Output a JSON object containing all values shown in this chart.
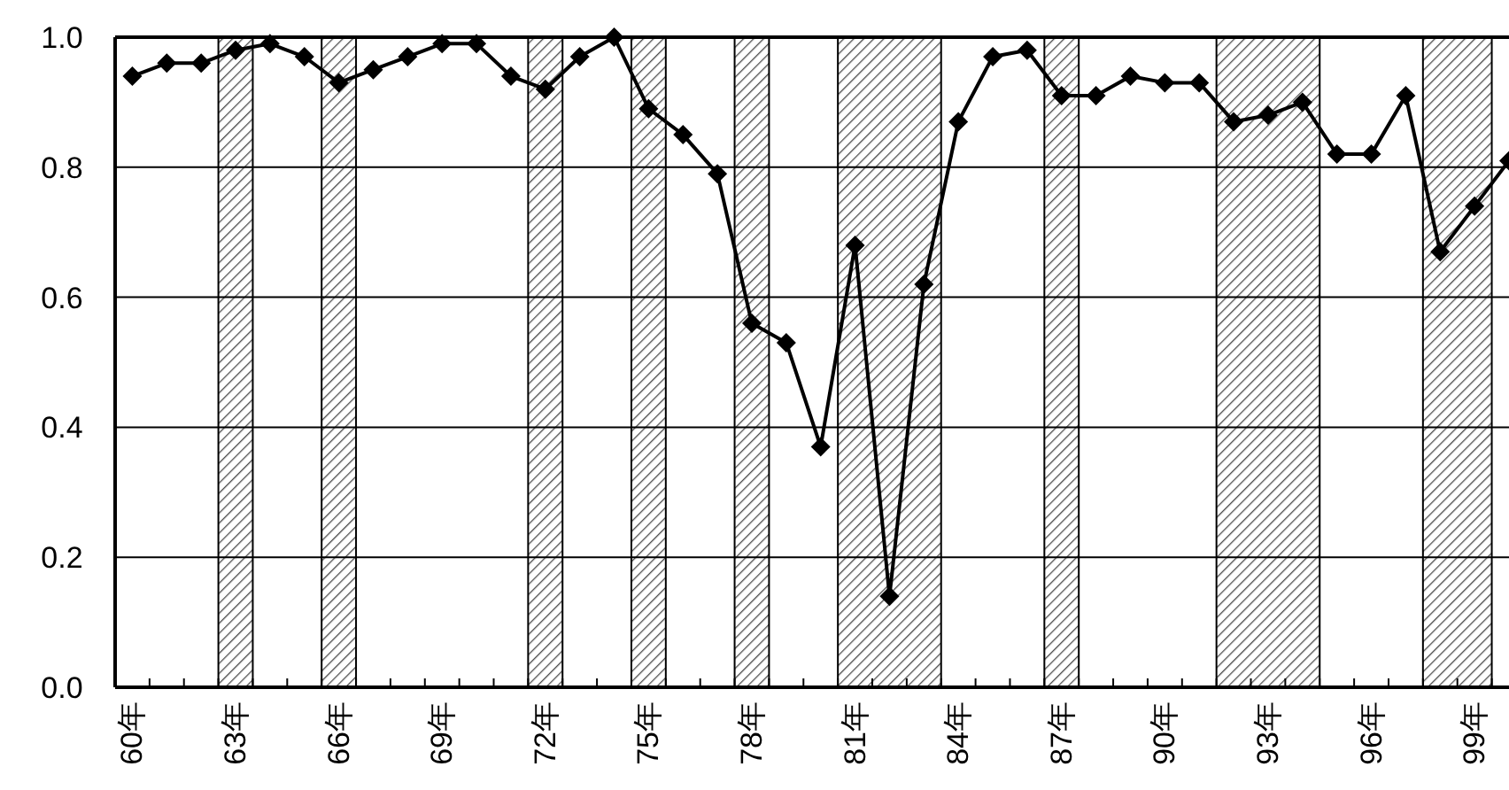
{
  "chart_data": {
    "type": "line",
    "x": [
      60,
      61,
      62,
      63,
      64,
      65,
      66,
      67,
      68,
      69,
      70,
      71,
      72,
      73,
      74,
      75,
      76,
      77,
      78,
      79,
      80,
      81,
      82,
      83,
      84,
      85,
      86,
      87,
      88,
      89,
      90,
      91,
      92,
      93,
      94,
      95,
      96,
      97,
      98,
      99,
      100
    ],
    "series": [
      {
        "color": "#000000",
        "values": [
          0.94,
          0.96,
          0.96,
          0.98,
          0.99,
          0.97,
          0.93,
          0.95,
          0.97,
          0.99,
          0.99,
          0.94,
          0.92,
          0.97,
          1.0,
          0.89,
          0.85,
          0.79,
          0.56,
          0.53,
          0.37,
          0.68,
          0.14,
          0.62,
          0.87,
          0.97,
          0.98,
          0.91,
          0.91,
          0.94,
          0.93,
          0.93,
          0.87,
          0.88,
          0.9,
          0.82,
          0.82,
          0.91,
          0.67,
          0.74,
          0.81
        ]
      }
    ],
    "xlim": [
      59.5,
      100
    ],
    "xticks": [
      {
        "value": 60,
        "label": "60年"
      },
      {
        "value": 63,
        "label": "63年"
      },
      {
        "value": 66,
        "label": "66年"
      },
      {
        "value": 69,
        "label": "69年"
      },
      {
        "value": 72,
        "label": "72年"
      },
      {
        "value": 75,
        "label": "75年"
      },
      {
        "value": 78,
        "label": "78年"
      },
      {
        "value": 81,
        "label": "81年"
      },
      {
        "value": 84,
        "label": "84年"
      },
      {
        "value": 87,
        "label": "87年"
      },
      {
        "value": 90,
        "label": "90年"
      },
      {
        "value": 93,
        "label": "93年"
      },
      {
        "value": 96,
        "label": "96年"
      },
      {
        "value": 99,
        "label": "99年"
      },
      {
        "value": 60.5,
        "label": null
      },
      {
        "value": 61.5,
        "label": null
      },
      {
        "value": 62.5,
        "label": null
      },
      {
        "value": 63.5,
        "label": null
      },
      {
        "value": 64.5,
        "label": null
      },
      {
        "value": 65.5,
        "label": null
      },
      {
        "value": 66.5,
        "label": null
      },
      {
        "value": 67.5,
        "label": null
      },
      {
        "value": 68.5,
        "label": null
      },
      {
        "value": 69.5,
        "label": null
      },
      {
        "value": 70.5,
        "label": null
      },
      {
        "value": 71.5,
        "label": null
      },
      {
        "value": 72.5,
        "label": null
      },
      {
        "value": 73.5,
        "label": null
      },
      {
        "value": 74.5,
        "label": null
      },
      {
        "value": 75.5,
        "label": null
      },
      {
        "value": 76.5,
        "label": null
      },
      {
        "value": 77.5,
        "label": null
      },
      {
        "value": 78.5,
        "label": null
      },
      {
        "value": 79.5,
        "label": null
      },
      {
        "value": 80.5,
        "label": null
      },
      {
        "value": 81.5,
        "label": null
      },
      {
        "value": 82.5,
        "label": null
      },
      {
        "value": 83.5,
        "label": null
      },
      {
        "value": 84.5,
        "label": null
      },
      {
        "value": 85.5,
        "label": null
      },
      {
        "value": 86.5,
        "label": null
      },
      {
        "value": 87.5,
        "label": null
      },
      {
        "value": 88.5,
        "label": null
      },
      {
        "value": 89.5,
        "label": null
      },
      {
        "value": 90.5,
        "label": null
      },
      {
        "value": 91.5,
        "label": null
      },
      {
        "value": 92.5,
        "label": null
      },
      {
        "value": 93.5,
        "label": null
      },
      {
        "value": 94.5,
        "label": null
      },
      {
        "value": 95.5,
        "label": null
      },
      {
        "value": 96.5,
        "label": null
      },
      {
        "value": 97.5,
        "label": null
      },
      {
        "value": 98.5,
        "label": null
      },
      {
        "value": 99.5,
        "label": null
      }
    ],
    "ylim": [
      0,
      1
    ],
    "yticks": [
      {
        "value": 0,
        "label": "0.0"
      },
      {
        "value": 0.2,
        "label": "0.2"
      },
      {
        "value": 0.4,
        "label": "0.4"
      },
      {
        "value": 0.6,
        "label": "0.6"
      },
      {
        "value": 0.8,
        "label": "0.8"
      },
      {
        "value": 1,
        "label": "1.0"
      }
    ],
    "grid": "y",
    "marker": "diamond",
    "line_style": "solid",
    "bands": [
      {
        "axis": "x",
        "from": 62.5,
        "to": 63.5,
        "color": "#000000"
      },
      {
        "axis": "x",
        "from": 65.5,
        "to": 66.5,
        "color": "#000000"
      },
      {
        "axis": "x",
        "from": 71.5,
        "to": 72.5,
        "color": "#000000"
      },
      {
        "axis": "x",
        "from": 74.5,
        "to": 75.5,
        "color": "#000000"
      },
      {
        "axis": "x",
        "from": 77.5,
        "to": 78.5,
        "color": "#000000"
      },
      {
        "axis": "x",
        "from": 80.5,
        "to": 83.5,
        "color": "#000000"
      },
      {
        "axis": "x",
        "from": 86.5,
        "to": 87.5,
        "color": "#000000"
      },
      {
        "axis": "x",
        "from": 91.5,
        "to": 94.5,
        "color": "#000000"
      },
      {
        "axis": "x",
        "from": 97.5,
        "to": 99.5,
        "color": "#000000"
      }
    ]
  }
}
